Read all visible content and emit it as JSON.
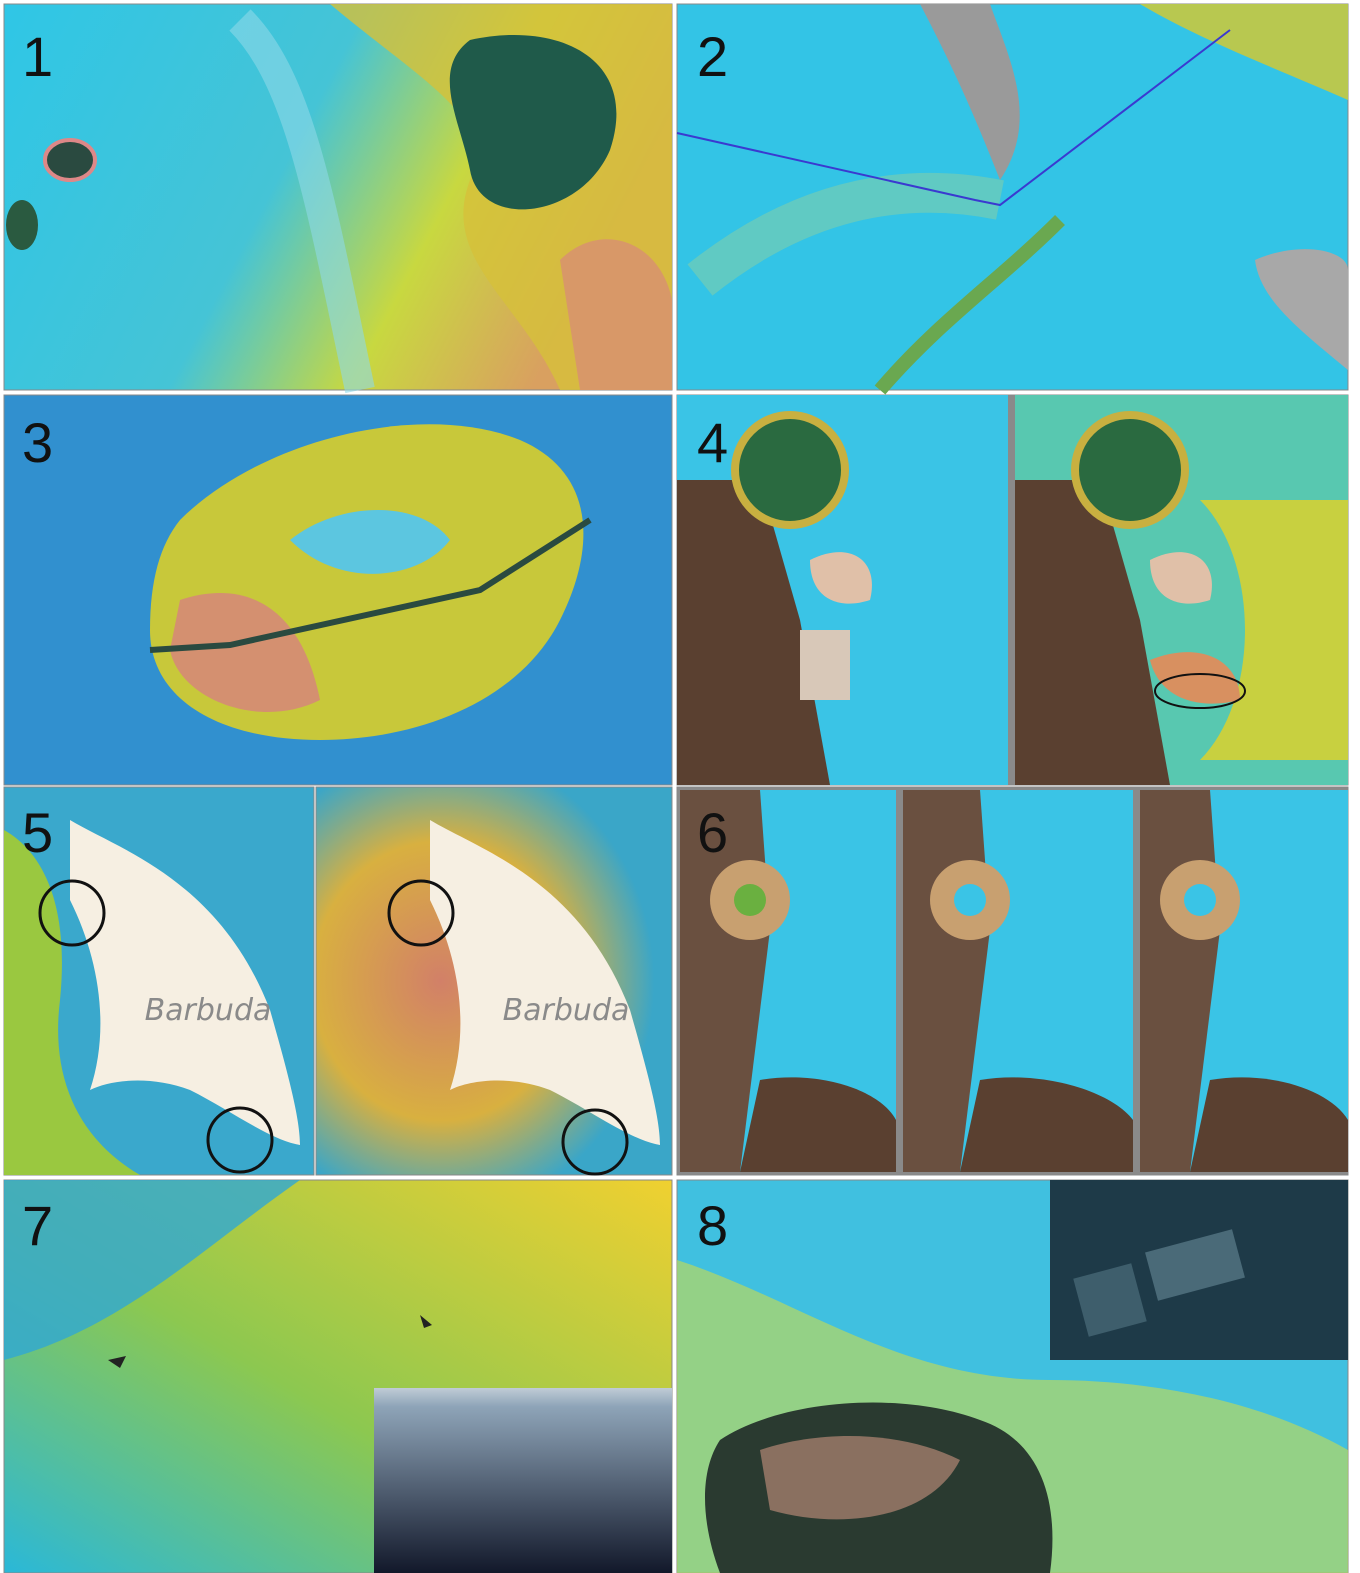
{
  "panels": [
    {
      "label": "1"
    },
    {
      "label": "2"
    },
    {
      "label": "3"
    },
    {
      "label": "4"
    },
    {
      "label": "5",
      "annotations": [
        "Barbuda",
        "Barbuda"
      ]
    },
    {
      "label": "6"
    },
    {
      "label": "7"
    },
    {
      "label": "8"
    }
  ]
}
